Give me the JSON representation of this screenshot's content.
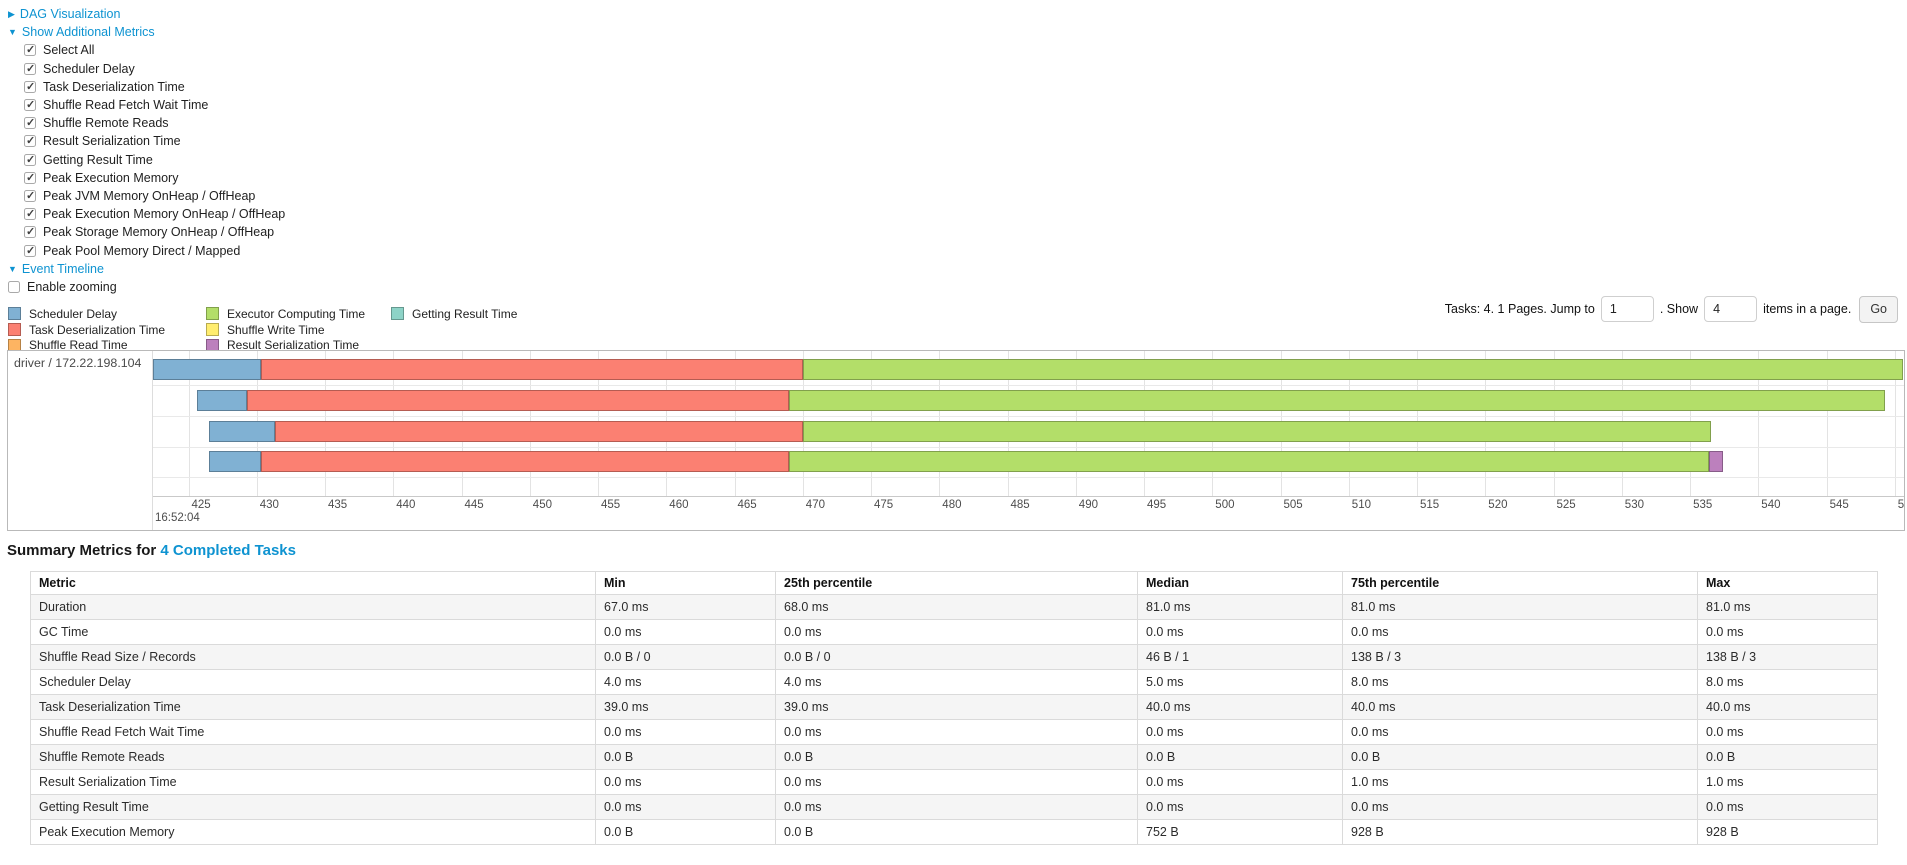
{
  "colors": {
    "link": "#0e93d1",
    "scheduler_delay": "#80B1D3",
    "task_deserialization_time": "#FB8072",
    "shuffle_read_time": "#FDB462",
    "executor_computing_time": "#B3DE69",
    "shuffle_write_time": "#FFED6F",
    "result_serialization_time": "#BC80BD",
    "getting_result_time": "#8DD3C7"
  },
  "controls": {
    "dag_label": "DAG Visualization",
    "dag_arrow": "▶",
    "metrics_label": "Show Additional Metrics",
    "metrics_arrow": "▼",
    "metric_checkboxes": [
      "Select All",
      "Scheduler Delay",
      "Task Deserialization Time",
      "Shuffle Read Fetch Wait Time",
      "Shuffle Remote Reads",
      "Result Serialization Time",
      "Getting Result Time",
      "Peak Execution Memory",
      "Peak JVM Memory OnHeap / OffHeap",
      "Peak Execution Memory OnHeap / OffHeap",
      "Peak Storage Memory OnHeap / OffHeap",
      "Peak Pool Memory Direct / Mapped"
    ],
    "event_timeline_label": "Event Timeline",
    "event_timeline_arrow": "▼",
    "enable_zooming_label": "Enable zooming",
    "enable_zooming_checked": false
  },
  "legend": {
    "columns": [
      [
        {
          "label": "Scheduler Delay",
          "color": "#80B1D3"
        },
        {
          "label": "Task Deserialization Time",
          "color": "#FB8072"
        },
        {
          "label": "Shuffle Read Time",
          "color": "#FDB462"
        }
      ],
      [
        {
          "label": "Executor Computing Time",
          "color": "#B3DE69"
        },
        {
          "label": "Shuffle Write Time",
          "color": "#FFED6F"
        },
        {
          "label": "Result Serialization Time",
          "color": "#BC80BD"
        }
      ],
      [
        {
          "label": "Getting Result Time",
          "color": "#8DD3C7"
        }
      ]
    ]
  },
  "pagination": {
    "prefix": "Tasks: 4. 1 Pages. Jump to",
    "jump_value": "1",
    "mid": ". Show",
    "show_value": "4",
    "suffix": "items in a page.",
    "go_label": "Go"
  },
  "chart_data": {
    "type": "timeline",
    "title": "Event Timeline",
    "group_label": "driver / 172.22.198.104",
    "x_axis": {
      "major_label": "16:52:04",
      "min": 422.4,
      "max": 550.6,
      "tick_min": 425,
      "tick_max": 550,
      "tick_step": 5,
      "grid": true
    },
    "tasks": [
      {
        "name": "task-bar-1",
        "segments": [
          {
            "series": "Scheduler Delay",
            "start": 422.4,
            "end": 430.3
          },
          {
            "series": "Task Deserialization Time",
            "start": 430.3,
            "end": 470.0
          },
          {
            "series": "Executor Computing Time",
            "start": 470.0,
            "end": 550.6
          }
        ]
      },
      {
        "name": "task-bar-2",
        "segments": [
          {
            "series": "Scheduler Delay",
            "start": 425.6,
            "end": 429.3
          },
          {
            "series": "Task Deserialization Time",
            "start": 429.3,
            "end": 469.0
          },
          {
            "series": "Executor Computing Time",
            "start": 469.0,
            "end": 549.3
          }
        ]
      },
      {
        "name": "task-bar-3",
        "segments": [
          {
            "series": "Scheduler Delay",
            "start": 426.5,
            "end": 431.3
          },
          {
            "series": "Task Deserialization Time",
            "start": 431.3,
            "end": 470.0
          },
          {
            "series": "Executor Computing Time",
            "start": 470.0,
            "end": 536.5
          }
        ]
      },
      {
        "name": "task-bar-4",
        "segments": [
          {
            "series": "Scheduler Delay",
            "start": 426.5,
            "end": 430.3
          },
          {
            "series": "Task Deserialization Time",
            "start": 430.3,
            "end": 469.0
          },
          {
            "series": "Executor Computing Time",
            "start": 469.0,
            "end": 536.4
          },
          {
            "series": "Result Serialization Time",
            "start": 536.4,
            "end": 537.4
          }
        ]
      }
    ]
  },
  "summary": {
    "title_prefix": "Summary Metrics for ",
    "title_link": "4 Completed Tasks",
    "columns": [
      "Metric",
      "Min",
      "25th percentile",
      "Median",
      "75th percentile",
      "Max"
    ],
    "rows": [
      [
        "Duration",
        "67.0 ms",
        "68.0 ms",
        "81.0 ms",
        "81.0 ms",
        "81.0 ms"
      ],
      [
        "GC Time",
        "0.0 ms",
        "0.0 ms",
        "0.0 ms",
        "0.0 ms",
        "0.0 ms"
      ],
      [
        "Shuffle Read Size / Records",
        "0.0 B / 0",
        "0.0 B / 0",
        "46 B / 1",
        "138 B / 3",
        "138 B / 3"
      ],
      [
        "Scheduler Delay",
        "4.0 ms",
        "4.0 ms",
        "5.0 ms",
        "8.0 ms",
        "8.0 ms"
      ],
      [
        "Task Deserialization Time",
        "39.0 ms",
        "39.0 ms",
        "40.0 ms",
        "40.0 ms",
        "40.0 ms"
      ],
      [
        "Shuffle Read Fetch Wait Time",
        "0.0 ms",
        "0.0 ms",
        "0.0 ms",
        "0.0 ms",
        "0.0 ms"
      ],
      [
        "Shuffle Remote Reads",
        "0.0 B",
        "0.0 B",
        "0.0 B",
        "0.0 B",
        "0.0 B"
      ],
      [
        "Result Serialization Time",
        "0.0 ms",
        "0.0 ms",
        "0.0 ms",
        "1.0 ms",
        "1.0 ms"
      ],
      [
        "Getting Result Time",
        "0.0 ms",
        "0.0 ms",
        "0.0 ms",
        "0.0 ms",
        "0.0 ms"
      ],
      [
        "Peak Execution Memory",
        "0.0 B",
        "0.0 B",
        "752 B",
        "928 B",
        "928 B"
      ]
    ]
  }
}
